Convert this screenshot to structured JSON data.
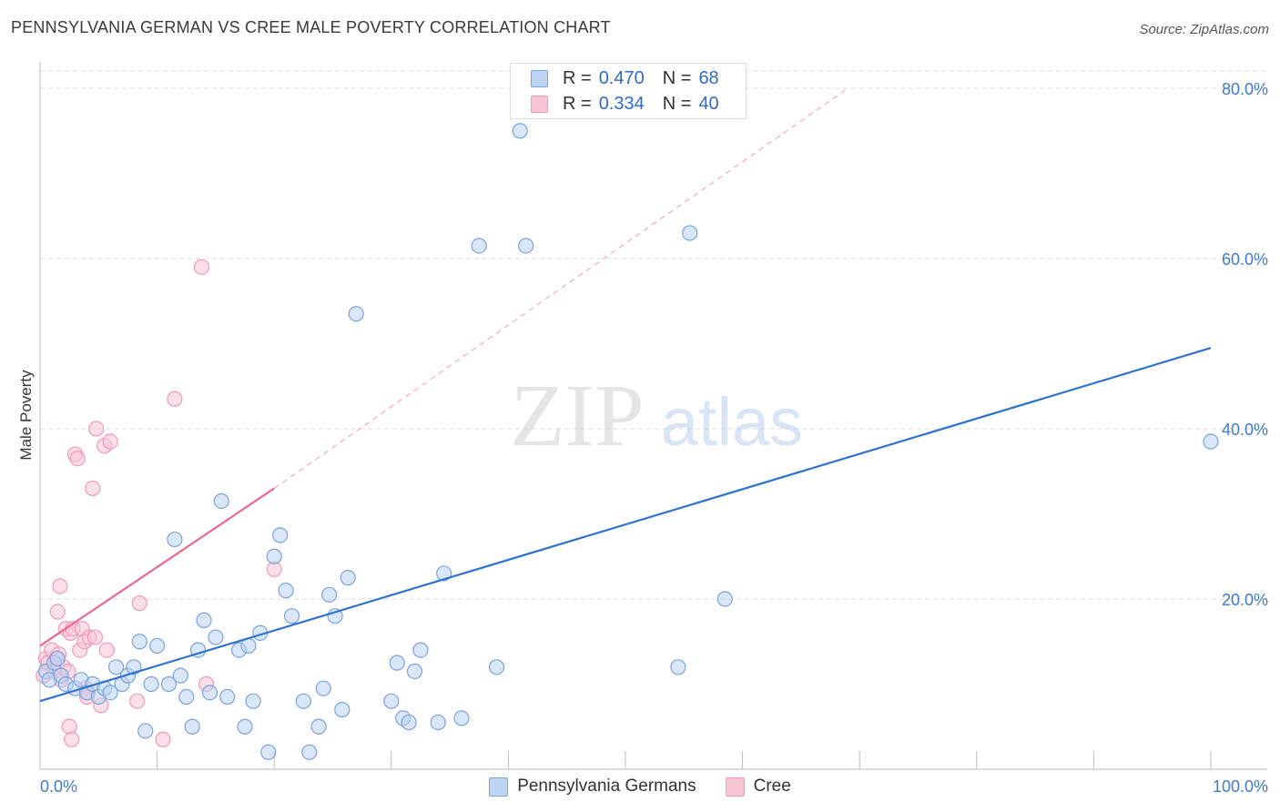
{
  "title": "PENNSYLVANIA GERMAN VS CREE MALE POVERTY CORRELATION CHART",
  "source": "Source: ZipAtlas.com",
  "watermark": {
    "zip": "ZIP",
    "atlas": "atlas"
  },
  "legend": {
    "rows": [
      {
        "r_label": "R =",
        "r_value": "0.470",
        "n_label": "N =",
        "n_value": "68"
      },
      {
        "r_label": "R =",
        "r_value": "0.334",
        "n_label": "N =",
        "n_value": "40"
      }
    ]
  },
  "bottom_legend": [
    "Pennsylvania Germans",
    "Cree"
  ],
  "colors": {
    "blue_fill": "#bcd3f2",
    "blue_stroke": "#7aa3dc",
    "blue_line": "#2f72d0",
    "pink_fill": "#f9c5d5",
    "pink_stroke": "#ee9ab5",
    "pink_line": "#e8688e",
    "axis_text": "#3d7bd0",
    "grid": "#dddddd"
  },
  "chart_data": {
    "type": "scatter",
    "title": "PENNSYLVANIA GERMAN VS CREE MALE POVERTY CORRELATION CHART",
    "xlabel": "",
    "ylabel": "Male Poverty",
    "xlim": [
      0,
      100
    ],
    "ylim": [
      0,
      80
    ],
    "x_tick_labels": [
      {
        "value": 0,
        "label": "0.0%"
      },
      {
        "value": 100,
        "label": "100.0%"
      }
    ],
    "y_tick_labels": [
      {
        "value": 20,
        "label": "20.0%"
      },
      {
        "value": 40,
        "label": "40.0%"
      },
      {
        "value": 60,
        "label": "60.0%"
      },
      {
        "value": 80,
        "label": "80.0%"
      }
    ],
    "series": [
      {
        "name": "Pennsylvania Germans",
        "R": 0.47,
        "N": 68,
        "trendline": {
          "x": [
            0,
            100
          ],
          "y": [
            8.0,
            49.5
          ],
          "style": "solid"
        },
        "points": [
          [
            0.5,
            11.5
          ],
          [
            0.8,
            10.5
          ],
          [
            1.2,
            12.5
          ],
          [
            1.5,
            13.0
          ],
          [
            1.8,
            11.0
          ],
          [
            2.2,
            10.0
          ],
          [
            3.0,
            9.5
          ],
          [
            3.5,
            10.5
          ],
          [
            4.0,
            9.0
          ],
          [
            4.5,
            10.0
          ],
          [
            5.0,
            8.5
          ],
          [
            5.5,
            9.5
          ],
          [
            6.0,
            9.0
          ],
          [
            6.5,
            12.0
          ],
          [
            7.0,
            10.0
          ],
          [
            7.5,
            11.0
          ],
          [
            8.0,
            12.0
          ],
          [
            8.5,
            15.0
          ],
          [
            9.0,
            4.5
          ],
          [
            9.5,
            10.0
          ],
          [
            10.0,
            14.5
          ],
          [
            11.0,
            10.0
          ],
          [
            11.5,
            27.0
          ],
          [
            12.0,
            11.0
          ],
          [
            12.5,
            8.5
          ],
          [
            13.0,
            5.0
          ],
          [
            13.5,
            14.0
          ],
          [
            14.0,
            17.5
          ],
          [
            14.5,
            9.0
          ],
          [
            15.0,
            15.5
          ],
          [
            15.5,
            31.5
          ],
          [
            16.0,
            8.5
          ],
          [
            17.0,
            14.0
          ],
          [
            17.5,
            5.0
          ],
          [
            17.8,
            14.5
          ],
          [
            18.2,
            8.0
          ],
          [
            18.8,
            16.0
          ],
          [
            19.5,
            2.0
          ],
          [
            20.0,
            25.0
          ],
          [
            20.5,
            27.5
          ],
          [
            21.0,
            21.0
          ],
          [
            21.5,
            18.0
          ],
          [
            22.5,
            8.0
          ],
          [
            23.0,
            2.0
          ],
          [
            23.8,
            5.0
          ],
          [
            24.2,
            9.5
          ],
          [
            24.7,
            20.5
          ],
          [
            25.2,
            18.0
          ],
          [
            25.8,
            7.0
          ],
          [
            26.3,
            22.5
          ],
          [
            27.0,
            53.5
          ],
          [
            30.0,
            8.0
          ],
          [
            30.5,
            12.5
          ],
          [
            31.0,
            6.0
          ],
          [
            31.5,
            5.5
          ],
          [
            32.0,
            11.5
          ],
          [
            32.5,
            14.0
          ],
          [
            34.0,
            5.5
          ],
          [
            34.5,
            23.0
          ],
          [
            36.0,
            6.0
          ],
          [
            37.5,
            61.5
          ],
          [
            39.0,
            12.0
          ],
          [
            41.0,
            75.0
          ],
          [
            41.5,
            61.5
          ],
          [
            54.5,
            12.0
          ],
          [
            55.5,
            63.0
          ],
          [
            58.5,
            20.0
          ],
          [
            100.0,
            38.5
          ]
        ]
      },
      {
        "name": "Cree",
        "R": 0.334,
        "N": 40,
        "trendline": {
          "x": [
            0,
            20
          ],
          "y": [
            14.5,
            33.0
          ],
          "style": "solid",
          "extended": {
            "x": [
              20,
              69
            ],
            "y": [
              33.0,
              80.0
            ],
            "style": "dashed"
          }
        },
        "points": [
          [
            0.3,
            11.0
          ],
          [
            0.5,
            13.0
          ],
          [
            0.7,
            12.5
          ],
          [
            1.0,
            14.0
          ],
          [
            1.2,
            11.5
          ],
          [
            1.4,
            13.0
          ],
          [
            1.5,
            18.5
          ],
          [
            1.6,
            13.5
          ],
          [
            1.7,
            21.5
          ],
          [
            1.8,
            10.5
          ],
          [
            2.0,
            12.0
          ],
          [
            2.2,
            16.5
          ],
          [
            2.4,
            11.5
          ],
          [
            2.5,
            5.0
          ],
          [
            2.6,
            16.0
          ],
          [
            2.7,
            3.5
          ],
          [
            2.8,
            16.5
          ],
          [
            3.0,
            37.0
          ],
          [
            3.2,
            36.5
          ],
          [
            3.4,
            14.0
          ],
          [
            3.6,
            16.5
          ],
          [
            3.8,
            15.0
          ],
          [
            3.9,
            9.5
          ],
          [
            4.0,
            8.5
          ],
          [
            4.2,
            15.5
          ],
          [
            4.5,
            33.0
          ],
          [
            4.7,
            15.5
          ],
          [
            4.8,
            40.0
          ],
          [
            5.2,
            7.5
          ],
          [
            5.5,
            38.0
          ],
          [
            5.7,
            14.0
          ],
          [
            6.0,
            38.5
          ],
          [
            8.5,
            19.5
          ],
          [
            8.3,
            8.0
          ],
          [
            10.5,
            3.5
          ],
          [
            11.5,
            43.5
          ],
          [
            13.8,
            59.0
          ],
          [
            14.2,
            10.0
          ],
          [
            20.0,
            23.5
          ],
          [
            4.1,
            9.0
          ]
        ]
      }
    ]
  }
}
